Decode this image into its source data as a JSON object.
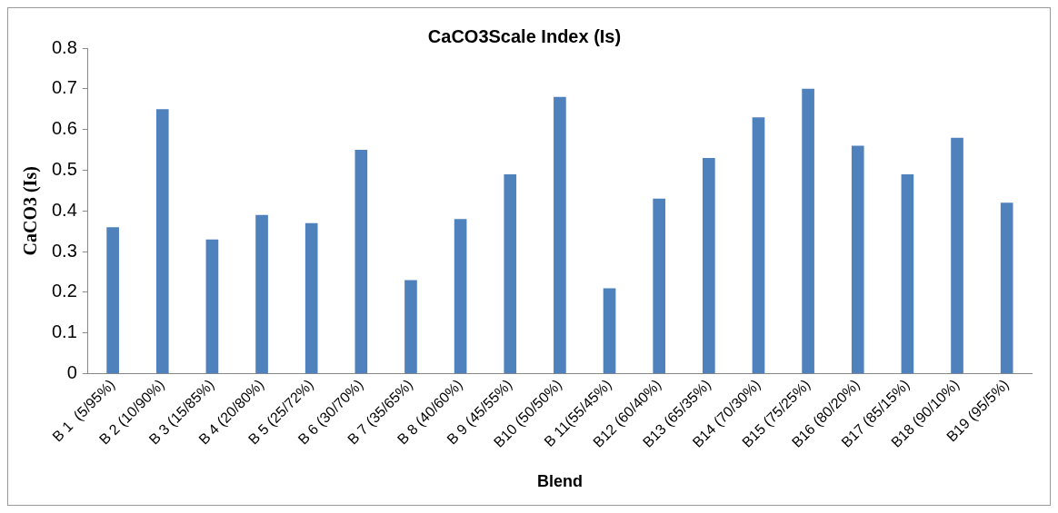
{
  "chart_data": {
    "type": "bar",
    "title": "CaCO3Scale Index (Is)",
    "xlabel": "Blend",
    "ylabel": "CaCO3 (Is)",
    "categories": [
      "B 1  (5/95%)",
      "B 2 (10/90%)",
      "B 3 (15/85%)",
      "B 4 (20/80%)",
      "B 5 (25/72%)",
      "B 6 (30/70%)",
      "B 7 (35/65%)",
      "B 8 (40/60%)",
      "B 9 (45/55%)",
      "B10 (50/50%)",
      "B 11(55/45%)",
      "B12 (60/40%)",
      "B13 (65/35%)",
      "B14 (70/30%)",
      "B15 (75/25%)",
      "B16 (80/20%)",
      "B17 (85/15%)",
      "B18 (90/10%)",
      "B19 (95/5%)"
    ],
    "values": [
      0.36,
      0.65,
      0.33,
      0.39,
      0.37,
      0.55,
      0.23,
      0.38,
      0.49,
      0.68,
      0.21,
      0.43,
      0.53,
      0.63,
      0.7,
      0.56,
      0.49,
      0.58,
      0.42
    ],
    "color": "#4f81bd",
    "ylim": [
      0,
      0.8
    ],
    "yticks": [
      0,
      0.1,
      0.2,
      0.3,
      0.4,
      0.5,
      0.6,
      0.7,
      0.8
    ],
    "grid": false,
    "legend": false
  }
}
